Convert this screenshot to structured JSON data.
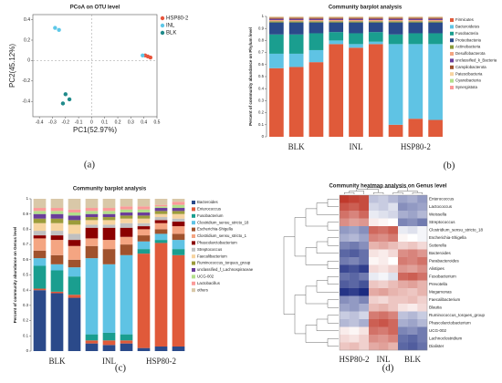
{
  "chart_data": [
    {
      "type": "scatter",
      "title": "PCoA on OTU level",
      "caption": "(a)",
      "xlabel": "PC1(52.97%)",
      "ylabel": "PC2(45.12%)",
      "xlim": [
        -0.45,
        0.5
      ],
      "xticks": [
        -0.4,
        -0.3,
        -0.2,
        -0.1,
        0,
        0.1,
        0.2,
        0.3,
        0.4,
        0.5
      ],
      "ylim": [
        -0.55,
        0.45
      ],
      "yticks": [
        -0.4,
        -0.2,
        0,
        0.2,
        0.4
      ],
      "zero_lines": true,
      "legend": "upper right",
      "series": [
        {
          "name": "HSP80-2",
          "color": "#e8553c",
          "x": [
            0.43,
            0.45,
            0.41
          ],
          "values": [
            0.04,
            0.03,
            0.05
          ]
        },
        {
          "name": "INL",
          "color": "#5ec8e8",
          "x": [
            -0.28,
            -0.25,
            0.39
          ],
          "values": [
            0.32,
            0.3,
            0.05
          ]
        },
        {
          "name": "BLK",
          "color": "#1f8a8a",
          "x": [
            -0.2,
            -0.17,
            -0.22
          ],
          "values": [
            -0.33,
            -0.38,
            -0.42
          ]
        }
      ]
    },
    {
      "type": "stacked_bar",
      "title": "Community barplot analysis",
      "caption": "(b)",
      "ylabel": "Percent of community abundance on Phylum level",
      "categories": [
        null,
        "BLK",
        null,
        null,
        "INL",
        null,
        null,
        "HSP80-2",
        null
      ],
      "ylim": [
        0,
        1
      ],
      "yticks": [
        0,
        0.1,
        0.2,
        0.3,
        0.4,
        0.5,
        0.6,
        0.7,
        0.8,
        0.9,
        1
      ],
      "series": [
        {
          "name": "Firmicutes",
          "color": "#e05a3a",
          "values": [
            0.57,
            0.58,
            0.62,
            0.77,
            0.74,
            0.77,
            0.1,
            0.15,
            0.14
          ]
        },
        {
          "name": "Bacteroidetes",
          "color": "#5fc3e4",
          "values": [
            0.12,
            0.11,
            0.1,
            0.03,
            0.03,
            0.02,
            0.67,
            0.62,
            0.63
          ]
        },
        {
          "name": "Fusobacteria",
          "color": "#1a9e8f",
          "values": [
            0.16,
            0.16,
            0.14,
            0.07,
            0.09,
            0.08,
            0.08,
            0.09,
            0.09
          ]
        },
        {
          "name": "Proteobacteria",
          "color": "#2b4a8a",
          "values": [
            0.1,
            0.1,
            0.09,
            0.08,
            0.09,
            0.08,
            0.1,
            0.09,
            0.09
          ]
        },
        {
          "name": "Actinobacteria",
          "color": "#8a9a3a",
          "values": [
            0.01,
            0.01,
            0.01,
            0.01,
            0.01,
            0.01,
            0.01,
            0.01,
            0.01
          ]
        },
        {
          "name": "Desulfobacterota",
          "color": "#f4a582",
          "values": [
            0.01,
            0.01,
            0.01,
            0.01,
            0.01,
            0.01,
            0.01,
            0.01,
            0.01
          ]
        },
        {
          "name": "unclassified_k_Bacteria",
          "color": "#6a3d9a",
          "values": [
            0.01,
            0.01,
            0.01,
            0.01,
            0.01,
            0.01,
            0.01,
            0.01,
            0.01
          ]
        },
        {
          "name": "Campilobacterota",
          "color": "#a0522d",
          "values": [
            0.01,
            0.01,
            0.01,
            0.01,
            0.01,
            0.01,
            0.01,
            0.01,
            0.01
          ]
        },
        {
          "name": "Patescibacteria",
          "color": "#f7d4a0",
          "values": [
            0.005,
            0.005,
            0.005,
            0.005,
            0.005,
            0.005,
            0.005,
            0.005,
            0.005
          ]
        },
        {
          "name": "Cyanobacteria",
          "color": "#b2df8a",
          "values": [
            0.003,
            0.003,
            0.003,
            0.003,
            0.003,
            0.003,
            0.003,
            0.003,
            0.003
          ]
        },
        {
          "name": "Synergistota",
          "color": "#fb9a99",
          "values": [
            0.002,
            0.002,
            0.002,
            0.002,
            0.002,
            0.002,
            0.002,
            0.002,
            0.002
          ]
        }
      ]
    },
    {
      "type": "stacked_bar",
      "title": "Community barplot analysis",
      "caption": "(c)",
      "ylabel": "Percent of community abundance on Genus level",
      "categories": [
        null,
        "BLK",
        null,
        null,
        "INL",
        null,
        null,
        "HSP80-2",
        null
      ],
      "ylim": [
        0,
        1
      ],
      "yticks": [
        0,
        0.1,
        0.2,
        0.3,
        0.4,
        0.5,
        0.6,
        0.7,
        0.8,
        0.9,
        1
      ],
      "series": [
        {
          "name": "Bacteroides",
          "color": "#2b4a8a",
          "values": [
            0.4,
            0.38,
            0.35,
            0.05,
            0.04,
            0.05,
            0.02,
            0.03,
            0.03
          ]
        },
        {
          "name": "Enterococcus",
          "color": "#e05a3a",
          "values": [
            0.01,
            0.01,
            0.02,
            0.02,
            0.03,
            0.02,
            0.62,
            0.68,
            0.6
          ]
        },
        {
          "name": "Fusobacterium",
          "color": "#1a9e8f",
          "values": [
            0.15,
            0.14,
            0.12,
            0.04,
            0.05,
            0.04,
            0.03,
            0.02,
            0.04
          ]
        },
        {
          "name": "Clostridium_sensu_stricto_18",
          "color": "#5fc3e4",
          "values": [
            0.05,
            0.04,
            0.06,
            0.5,
            0.45,
            0.52,
            0.05,
            0.04,
            0.06
          ]
        },
        {
          "name": "Escherichia-Shigella",
          "color": "#a0522d",
          "values": [
            0.05,
            0.06,
            0.05,
            0.08,
            0.1,
            0.07,
            0.04,
            0.03,
            0.04
          ]
        },
        {
          "name": "Clostridium_sensu_stricto_1",
          "color": "#f4a582",
          "values": [
            0.08,
            0.1,
            0.09,
            0.05,
            0.06,
            0.05,
            0.04,
            0.04,
            0.05
          ]
        },
        {
          "name": "Phascolarctobacterium",
          "color": "#8b0000",
          "values": [
            0.02,
            0.03,
            0.04,
            0.07,
            0.08,
            0.06,
            0.02,
            0.02,
            0.03
          ]
        },
        {
          "name": "Streptococcus",
          "color": "#c0c0c0",
          "values": [
            0.03,
            0.03,
            0.04,
            0.02,
            0.02,
            0.03,
            0.02,
            0.02,
            0.02
          ]
        },
        {
          "name": "Faecalibacterium",
          "color": "#f7d4a0",
          "values": [
            0.05,
            0.05,
            0.06,
            0.03,
            0.03,
            0.03,
            0.03,
            0.02,
            0.03
          ]
        },
        {
          "name": "Ruminococcus_torques_group",
          "color": "#9c9c3a",
          "values": [
            0.03,
            0.03,
            0.03,
            0.02,
            0.02,
            0.02,
            0.02,
            0.02,
            0.02
          ]
        },
        {
          "name": "unclassified_f_Lachnospiraceae",
          "color": "#6a3d9a",
          "values": [
            0.03,
            0.03,
            0.03,
            0.02,
            0.02,
            0.02,
            0.02,
            0.02,
            0.02
          ]
        },
        {
          "name": "UCG-002",
          "color": "#b2df8a",
          "values": [
            0.02,
            0.02,
            0.02,
            0.02,
            0.02,
            0.02,
            0.02,
            0.01,
            0.02
          ]
        },
        {
          "name": "Lactobacillus",
          "color": "#fb9a99",
          "values": [
            0.02,
            0.02,
            0.02,
            0.02,
            0.02,
            0.02,
            0.02,
            0.01,
            0.02
          ]
        },
        {
          "name": "others",
          "color": "#d9c8a8",
          "values": [
            0.06,
            0.06,
            0.07,
            0.06,
            0.06,
            0.05,
            0.05,
            0.04,
            0.02
          ]
        }
      ]
    },
    {
      "type": "heatmap",
      "title": "Community heatmap analysis on Genus level",
      "caption": "(d)",
      "categories": [
        null,
        "HSP80-2",
        null,
        null,
        "INL",
        null,
        null,
        "BLK",
        null
      ],
      "colors": [
        "#1a2a80",
        "#ffffff",
        "#c0392b"
      ],
      "rows": [
        "Enterococcus",
        "Lactococcus",
        "Weissella",
        "Streptococcus",
        "Clostridium_sensu_stricto_18",
        "Escherichia-Shigella",
        "Sutterella",
        "Bacteroides",
        "Parabacteroides",
        "Alistipes",
        "Fusobacterium",
        "Prevotella",
        "Megamonas",
        "Faecalibacterium",
        "Blautia",
        "Ruminococcus_torques_group",
        "Phascolarctobacterium",
        "UCG-002",
        "Lachnoclostridium",
        "Dialister"
      ],
      "values": [
        [
          2.1,
          2.0,
          1.9,
          -0.6,
          -0.5,
          -0.7,
          -0.9,
          -0.8,
          -1.0
        ],
        [
          1.8,
          1.7,
          1.9,
          -0.4,
          -0.5,
          -0.3,
          -1.1,
          -1.0,
          -0.9
        ],
        [
          1.5,
          1.3,
          1.6,
          -0.2,
          -0.3,
          -0.4,
          -0.8,
          -0.9,
          -0.7
        ],
        [
          1.2,
          1.0,
          1.1,
          0.2,
          0.1,
          0.0,
          -1.2,
          -1.1,
          -1.3
        ],
        [
          -1.0,
          -0.9,
          -1.1,
          1.6,
          1.5,
          1.7,
          -0.2,
          -0.3,
          -0.1
        ],
        [
          -0.8,
          -0.7,
          -0.9,
          1.3,
          1.2,
          1.4,
          0.1,
          0.0,
          -0.1
        ],
        [
          -1.2,
          -1.3,
          -1.1,
          0.8,
          0.9,
          0.7,
          0.5,
          0.6,
          0.4
        ],
        [
          -1.5,
          -1.6,
          -1.4,
          0.3,
          0.2,
          0.4,
          1.2,
          1.3,
          1.1
        ],
        [
          -1.3,
          -1.2,
          -1.4,
          0.1,
          0.2,
          0.0,
          1.4,
          1.3,
          1.5
        ],
        [
          -1.8,
          -1.7,
          -1.9,
          0.4,
          0.3,
          0.5,
          1.1,
          1.0,
          1.2
        ],
        [
          -1.4,
          -1.5,
          -1.3,
          -0.2,
          -0.1,
          -0.3,
          1.6,
          1.7,
          1.5
        ],
        [
          -1.6,
          -1.5,
          -1.7,
          0.6,
          0.5,
          0.7,
          0.9,
          1.0,
          0.8
        ],
        [
          -2.0,
          -1.9,
          -2.1,
          0.9,
          1.0,
          0.8,
          0.7,
          0.6,
          0.8
        ],
        [
          -1.1,
          -1.0,
          -1.2,
          0.5,
          0.4,
          0.6,
          0.6,
          0.7,
          0.5
        ],
        [
          -0.9,
          -1.0,
          -0.8,
          0.7,
          0.8,
          0.6,
          0.3,
          0.2,
          0.4
        ],
        [
          -0.5,
          -0.6,
          -0.4,
          1.4,
          1.5,
          1.3,
          -0.6,
          -0.7,
          -0.5
        ],
        [
          -0.7,
          -0.6,
          -0.8,
          1.7,
          1.8,
          1.6,
          -0.8,
          -0.9,
          -0.7
        ],
        [
          0.2,
          0.1,
          0.3,
          1.5,
          1.4,
          1.6,
          -1.2,
          -1.1,
          -1.3
        ],
        [
          0.4,
          0.3,
          0.5,
          1.2,
          1.1,
          1.3,
          -1.4,
          -1.5,
          -1.3
        ],
        [
          0.6,
          0.7,
          0.5,
          0.9,
          1.0,
          0.8,
          -1.5,
          -1.6,
          -1.4
        ]
      ]
    }
  ]
}
